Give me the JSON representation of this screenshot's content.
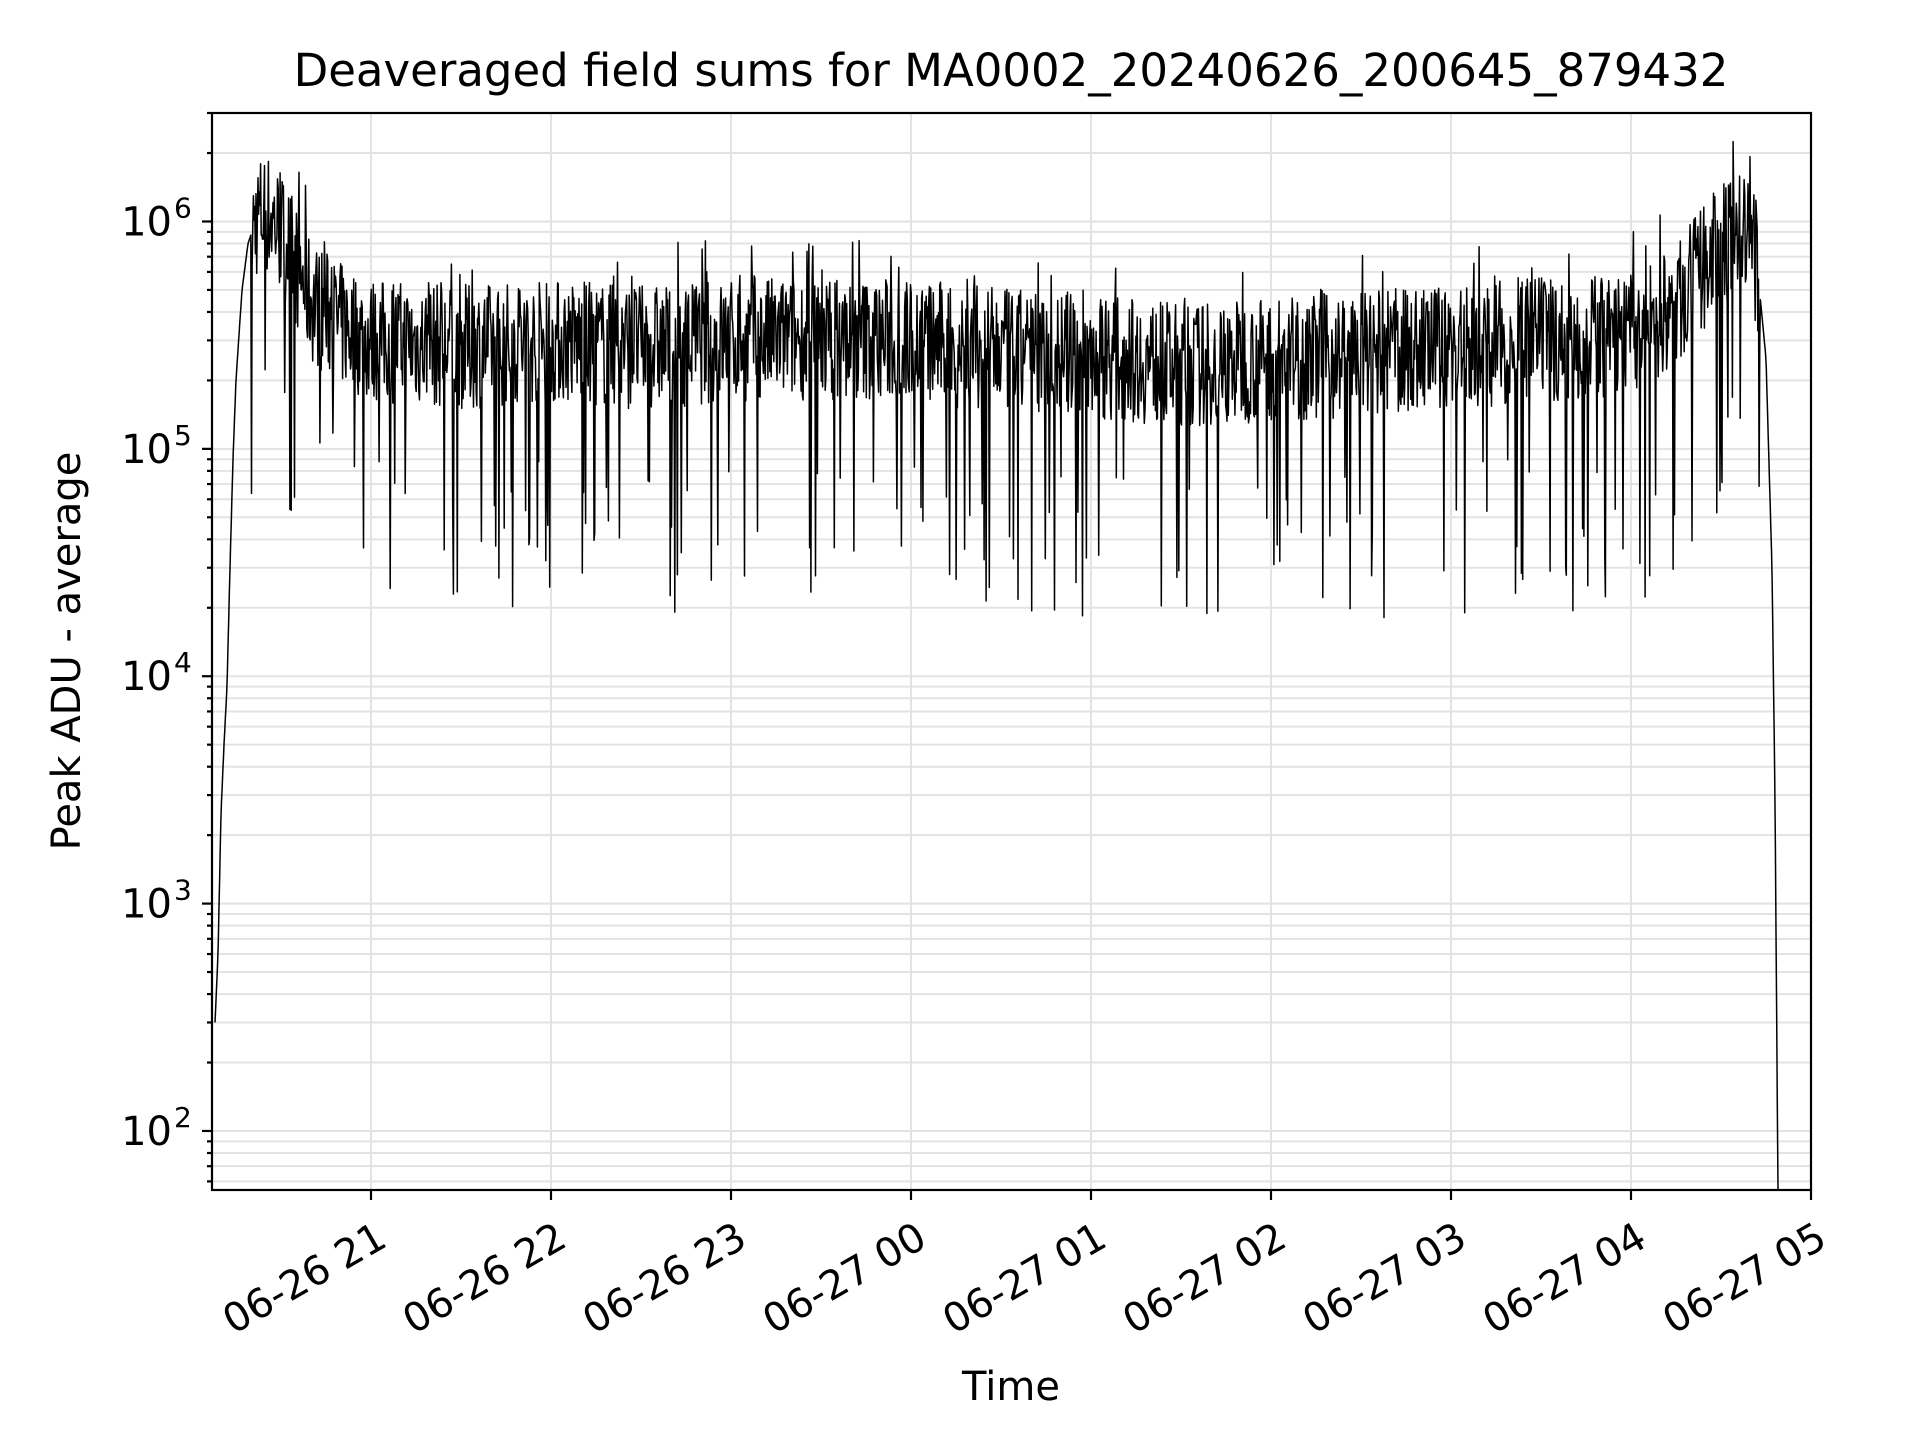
{
  "chart_data": {
    "type": "line",
    "title": "Deaveraged field sums for MA0002_20240626_200645_879432",
    "xlabel": "Time",
    "ylabel": "Peak ADU - average",
    "x_scale": "time",
    "y_scale": "log",
    "grid": true,
    "grid_minor_y": true,
    "ylim": [
      55,
      3000000
    ],
    "xlim": [
      "2024-06-26 20:07",
      "2024-06-27 05:00"
    ],
    "x_ticks": [
      {
        "time": "2024-06-26 21:00",
        "label": "06-26 21"
      },
      {
        "time": "2024-06-26 22:00",
        "label": "06-26 22"
      },
      {
        "time": "2024-06-26 23:00",
        "label": "06-26 23"
      },
      {
        "time": "2024-06-27 00:00",
        "label": "06-27 00"
      },
      {
        "time": "2024-06-27 01:00",
        "label": "06-27 01"
      },
      {
        "time": "2024-06-27 02:00",
        "label": "06-27 02"
      },
      {
        "time": "2024-06-27 03:00",
        "label": "06-27 03"
      },
      {
        "time": "2024-06-27 04:00",
        "label": "06-27 04"
      },
      {
        "time": "2024-06-27 05:00",
        "label": "06-27 05"
      }
    ],
    "y_ticks": [
      {
        "value": 100,
        "base": "10",
        "exp": "2"
      },
      {
        "value": 1000,
        "base": "10",
        "exp": "3"
      },
      {
        "value": 10000,
        "base": "10",
        "exp": "4"
      },
      {
        "value": 100000,
        "base": "10",
        "exp": "5"
      },
      {
        "value": 1000000,
        "base": "10",
        "exp": "6"
      }
    ],
    "series": [
      {
        "color": "#000000",
        "points": [
          [
            "2024-06-26 20:08",
            300
          ],
          [
            "2024-06-26 20:09",
            600
          ],
          [
            "2024-06-26 20:10",
            2500
          ],
          [
            "2024-06-26 20:11",
            5000
          ],
          [
            "2024-06-26 20:12",
            9000
          ],
          [
            "2024-06-26 20:13",
            30000
          ],
          [
            "2024-06-26 20:14",
            90000
          ],
          [
            "2024-06-26 20:15",
            200000
          ],
          [
            "2024-06-26 20:17",
            500000
          ],
          [
            "2024-06-26 20:19",
            800000
          ],
          [
            "2024-06-26 20:22",
            1050000
          ],
          [
            "2024-06-26 20:25",
            1100000
          ],
          [
            "2024-06-26 20:28",
            1000000
          ],
          [
            "2024-06-26 20:32",
            800000
          ],
          [
            "2024-06-26 20:36",
            600000
          ],
          [
            "2024-06-26 20:40",
            450000
          ],
          [
            "2024-06-26 20:50",
            350000
          ],
          [
            "2024-06-26 21:00",
            300000
          ],
          [
            "2024-06-26 21:30",
            280000
          ],
          [
            "2024-06-26 22:00",
            300000
          ],
          [
            "2024-06-26 22:30",
            280000
          ],
          [
            "2024-06-26 23:00",
            300000
          ],
          [
            "2024-06-26 23:30",
            310000
          ],
          [
            "2024-06-27 00:00",
            300000
          ],
          [
            "2024-06-27 00:30",
            270000
          ],
          [
            "2024-06-27 01:00",
            260000
          ],
          [
            "2024-06-27 01:30",
            230000
          ],
          [
            "2024-06-27 02:00",
            250000
          ],
          [
            "2024-06-27 02:30",
            260000
          ],
          [
            "2024-06-27 03:00",
            280000
          ],
          [
            "2024-06-27 03:30",
            300000
          ],
          [
            "2024-06-27 04:00",
            320000
          ],
          [
            "2024-06-27 04:15",
            420000
          ],
          [
            "2024-06-27 04:25",
            650000
          ],
          [
            "2024-06-27 04:33",
            850000
          ],
          [
            "2024-06-27 04:38",
            900000
          ],
          [
            "2024-06-27 04:42",
            650000
          ],
          [
            "2024-06-27 04:45",
            250000
          ],
          [
            "2024-06-27 04:47",
            30000
          ],
          [
            "2024-06-27 04:48",
            3000
          ],
          [
            "2024-06-27 04:49",
            55
          ]
        ]
      }
    ]
  }
}
